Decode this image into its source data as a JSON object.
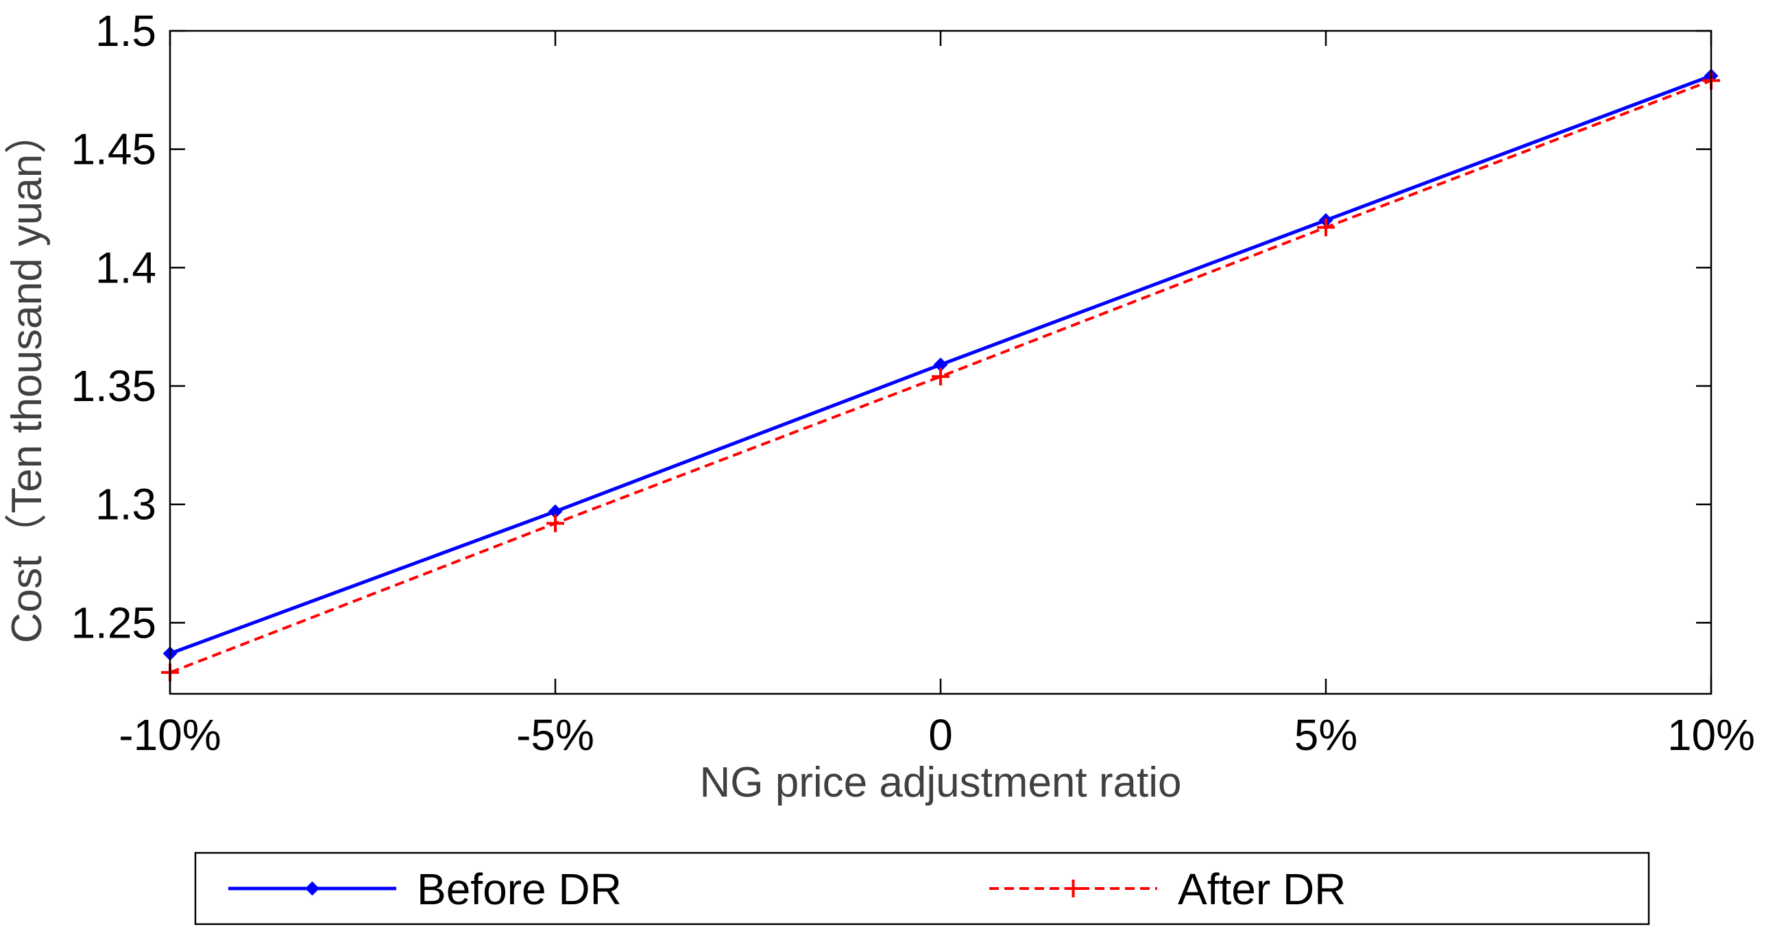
{
  "chart_data": {
    "type": "line",
    "title": "",
    "xlabel": "NG price adjustment ratio",
    "ylabel": "Cost（Ten thousand yuan）",
    "categories": [
      "-10%",
      "-5%",
      "0",
      "5%",
      "10%"
    ],
    "x": [
      -10,
      -5,
      0,
      5,
      10
    ],
    "xlim": [
      -10,
      10
    ],
    "ylim": [
      1.22,
      1.5
    ],
    "yticks": [
      1.25,
      1.3,
      1.35,
      1.4,
      1.45,
      1.5
    ],
    "ytick_labels": [
      "1.25",
      "1.3",
      "1.35",
      "1.4",
      "1.45",
      "1.5"
    ],
    "grid": false,
    "legend_position": "bottom",
    "series": [
      {
        "name": "Before DR",
        "values": [
          1.237,
          1.297,
          1.359,
          1.42,
          1.481
        ],
        "color": "#0000ff",
        "line_style": "solid",
        "marker": "diamond"
      },
      {
        "name": "After DR",
        "values": [
          1.229,
          1.292,
          1.354,
          1.417,
          1.479
        ],
        "color": "#ff0000",
        "line_style": "dashed",
        "marker": "plus"
      }
    ]
  }
}
